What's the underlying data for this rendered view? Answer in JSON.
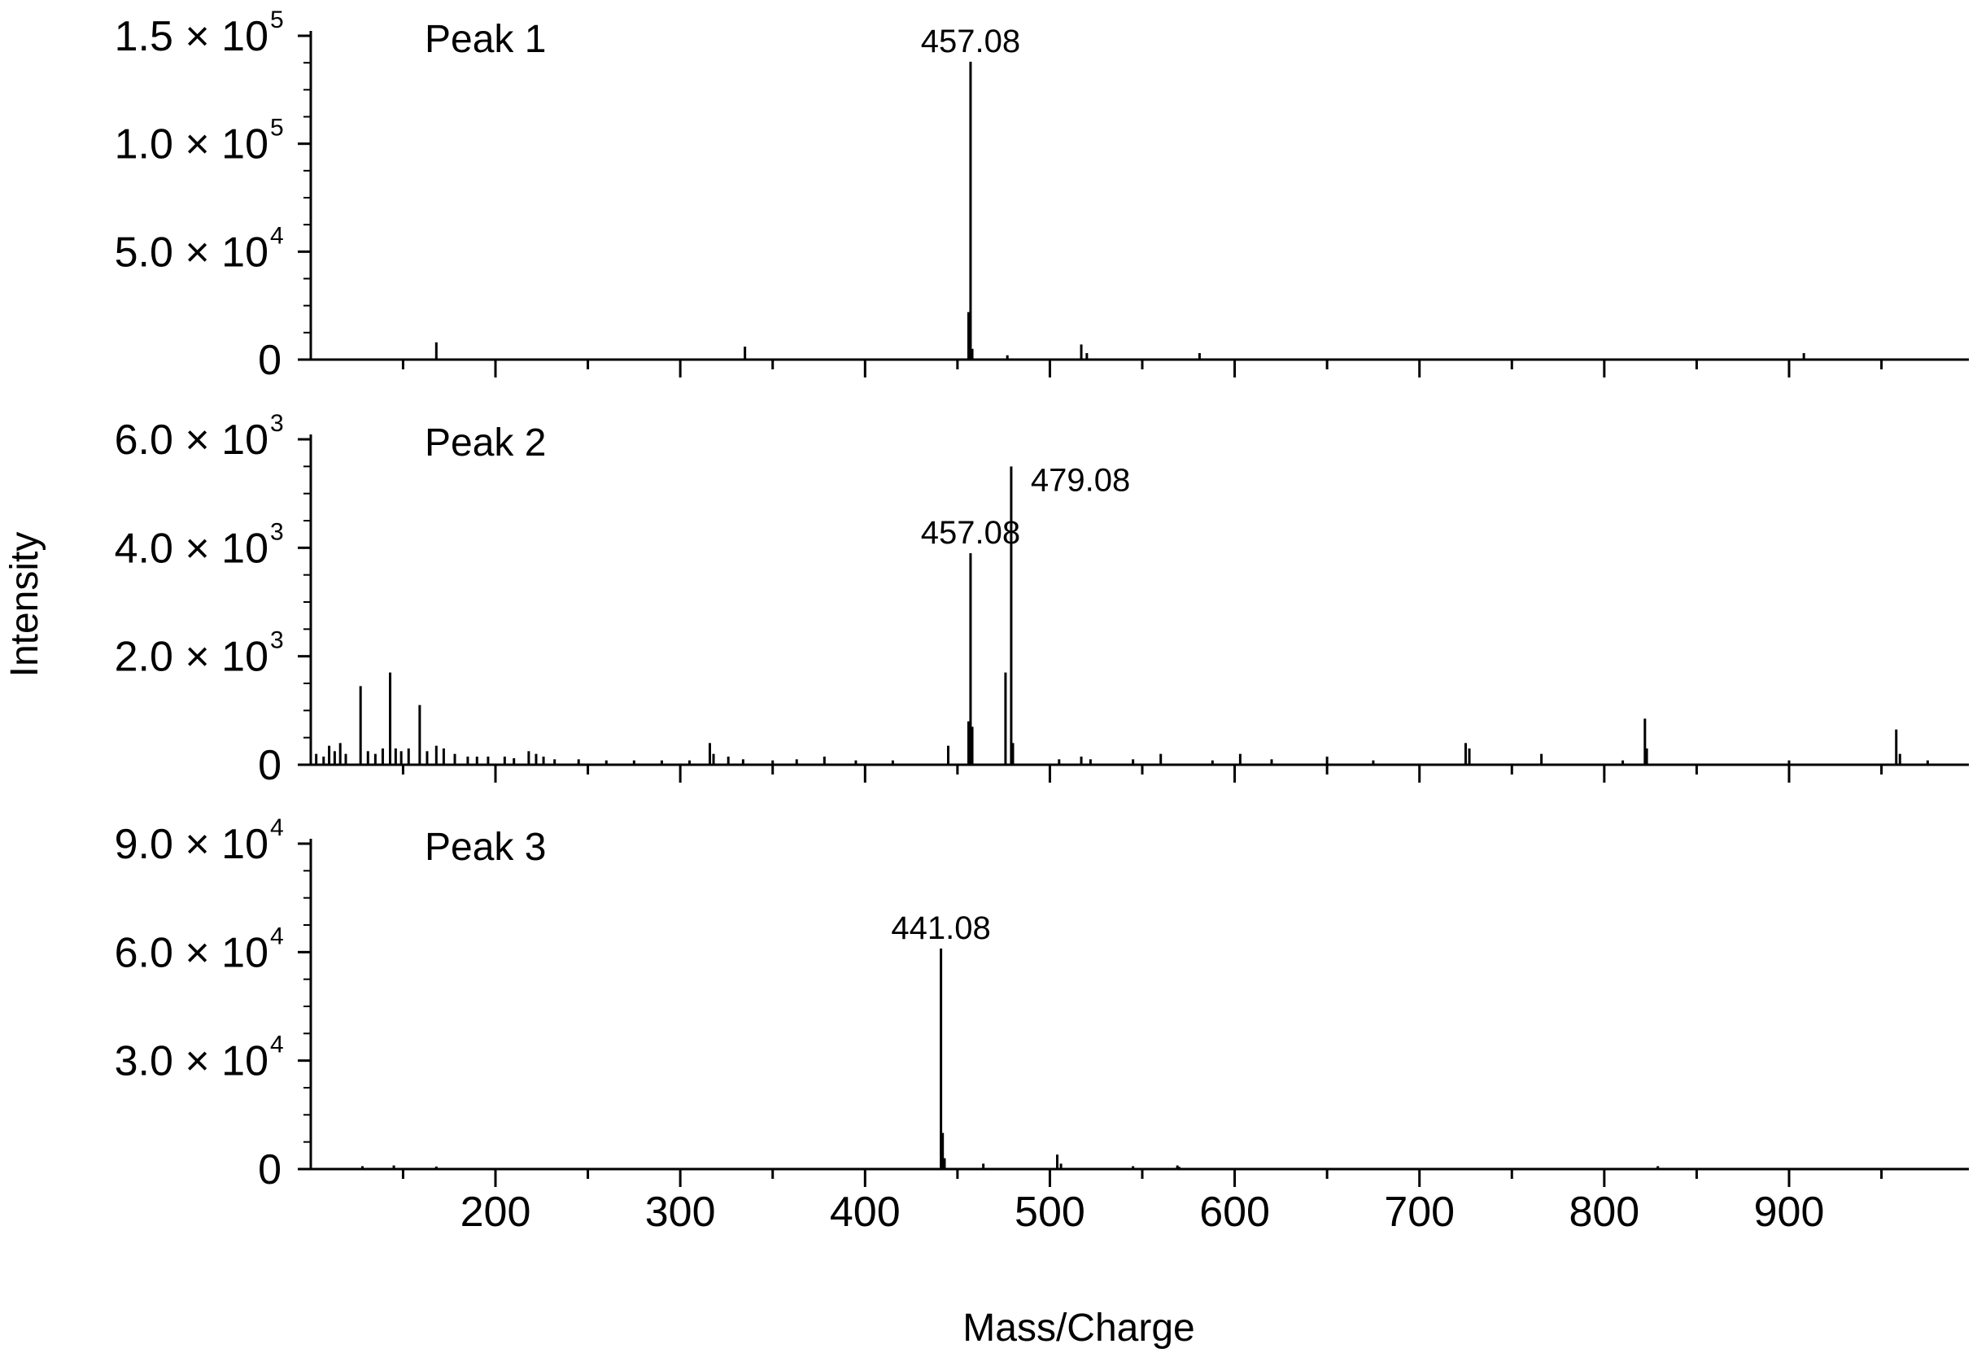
{
  "chart_data": {
    "type": "bar",
    "xlabel": "Mass/Charge",
    "ylabel": "Intensity",
    "xlim": [
      100,
      990
    ],
    "x_ticks": [
      "200",
      "300",
      "400",
      "500",
      "600",
      "700",
      "800",
      "900"
    ],
    "x_tick_values": [
      200,
      300,
      400,
      500,
      600,
      700,
      800,
      900
    ],
    "grid": false,
    "panels": [
      {
        "label": "Peak 1",
        "ylim": [
          0,
          150000
        ],
        "y_ticks": [
          {
            "value": 0,
            "mantissa": "0",
            "exponent": ""
          },
          {
            "value": 50000,
            "mantissa": "5.0 × 10",
            "exponent": "4"
          },
          {
            "value": 100000,
            "mantissa": "1.0 × 10",
            "exponent": "5"
          },
          {
            "value": 150000,
            "mantissa": "1.5 × 10",
            "exponent": "5"
          }
        ],
        "annotations": [
          {
            "text": "457.08",
            "x": 457.08
          }
        ],
        "peaks": [
          [
            168,
            8000
          ],
          [
            335,
            6000
          ],
          [
            456,
            22000
          ],
          [
            457.08,
            138000
          ],
          [
            458,
            5000
          ],
          [
            477,
            2000
          ],
          [
            517,
            7000
          ],
          [
            520,
            3000
          ],
          [
            581,
            3000
          ],
          [
            908,
            3000
          ]
        ]
      },
      {
        "label": "Peak 2",
        "ylim": [
          0,
          6000
        ],
        "y_ticks": [
          {
            "value": 0,
            "mantissa": "0",
            "exponent": ""
          },
          {
            "value": 2000,
            "mantissa": "2.0 × 10",
            "exponent": "3"
          },
          {
            "value": 4000,
            "mantissa": "4.0 × 10",
            "exponent": "3"
          },
          {
            "value": 6000,
            "mantissa": "6.0 × 10",
            "exponent": "3"
          }
        ],
        "annotations": [
          {
            "text": "457.08",
            "x": 457.08
          },
          {
            "text": "479.08",
            "x": 479.08
          }
        ],
        "peaks": [
          [
            103,
            200
          ],
          [
            107,
            150
          ],
          [
            110,
            350
          ],
          [
            113,
            250
          ],
          [
            116,
            400
          ],
          [
            119,
            200
          ],
          [
            127,
            1450
          ],
          [
            131,
            250
          ],
          [
            135,
            200
          ],
          [
            139,
            300
          ],
          [
            143,
            1700
          ],
          [
            146,
            300
          ],
          [
            149,
            250
          ],
          [
            153,
            300
          ],
          [
            159,
            1100
          ],
          [
            163,
            250
          ],
          [
            168,
            350
          ],
          [
            172,
            300
          ],
          [
            178,
            200
          ],
          [
            185,
            150
          ],
          [
            190,
            150
          ],
          [
            196,
            150
          ],
          [
            205,
            150
          ],
          [
            210,
            120
          ],
          [
            218,
            250
          ],
          [
            222,
            200
          ],
          [
            226,
            150
          ],
          [
            232,
            100
          ],
          [
            245,
            100
          ],
          [
            260,
            80
          ],
          [
            275,
            80
          ],
          [
            290,
            80
          ],
          [
            305,
            80
          ],
          [
            316,
            400
          ],
          [
            318,
            200
          ],
          [
            326,
            150
          ],
          [
            334,
            100
          ],
          [
            350,
            80
          ],
          [
            363,
            100
          ],
          [
            378,
            150
          ],
          [
            395,
            80
          ],
          [
            415,
            80
          ],
          [
            445,
            350
          ],
          [
            456,
            800
          ],
          [
            457.08,
            3900
          ],
          [
            458,
            700
          ],
          [
            476,
            1700
          ],
          [
            479.08,
            5500
          ],
          [
            480,
            400
          ],
          [
            505,
            100
          ],
          [
            517,
            150
          ],
          [
            522,
            100
          ],
          [
            545,
            100
          ],
          [
            560,
            200
          ],
          [
            588,
            80
          ],
          [
            603,
            200
          ],
          [
            620,
            100
          ],
          [
            650,
            150
          ],
          [
            675,
            80
          ],
          [
            725,
            400
          ],
          [
            727,
            300
          ],
          [
            766,
            200
          ],
          [
            810,
            80
          ],
          [
            822,
            850
          ],
          [
            823,
            300
          ],
          [
            900,
            80
          ],
          [
            958,
            650
          ],
          [
            960,
            200
          ],
          [
            975,
            80
          ]
        ]
      },
      {
        "label": "Peak 3",
        "ylim": [
          0,
          90000
        ],
        "y_ticks": [
          {
            "value": 0,
            "mantissa": "0",
            "exponent": ""
          },
          {
            "value": 30000,
            "mantissa": "3.0 × 10",
            "exponent": "4"
          },
          {
            "value": 60000,
            "mantissa": "6.0 × 10",
            "exponent": "4"
          },
          {
            "value": 90000,
            "mantissa": "9.0 × 10",
            "exponent": "4"
          }
        ],
        "annotations": [
          {
            "text": "441.08",
            "x": 441.08
          }
        ],
        "peaks": [
          [
            128,
            800
          ],
          [
            145,
            1000
          ],
          [
            168,
            700
          ],
          [
            441.08,
            61000
          ],
          [
            442,
            10000
          ],
          [
            443,
            3000
          ],
          [
            464,
            1500
          ],
          [
            504,
            4000
          ],
          [
            506,
            1500
          ],
          [
            545,
            800
          ],
          [
            569,
            1000
          ],
          [
            570,
            600
          ],
          [
            829,
            800
          ]
        ]
      }
    ]
  }
}
